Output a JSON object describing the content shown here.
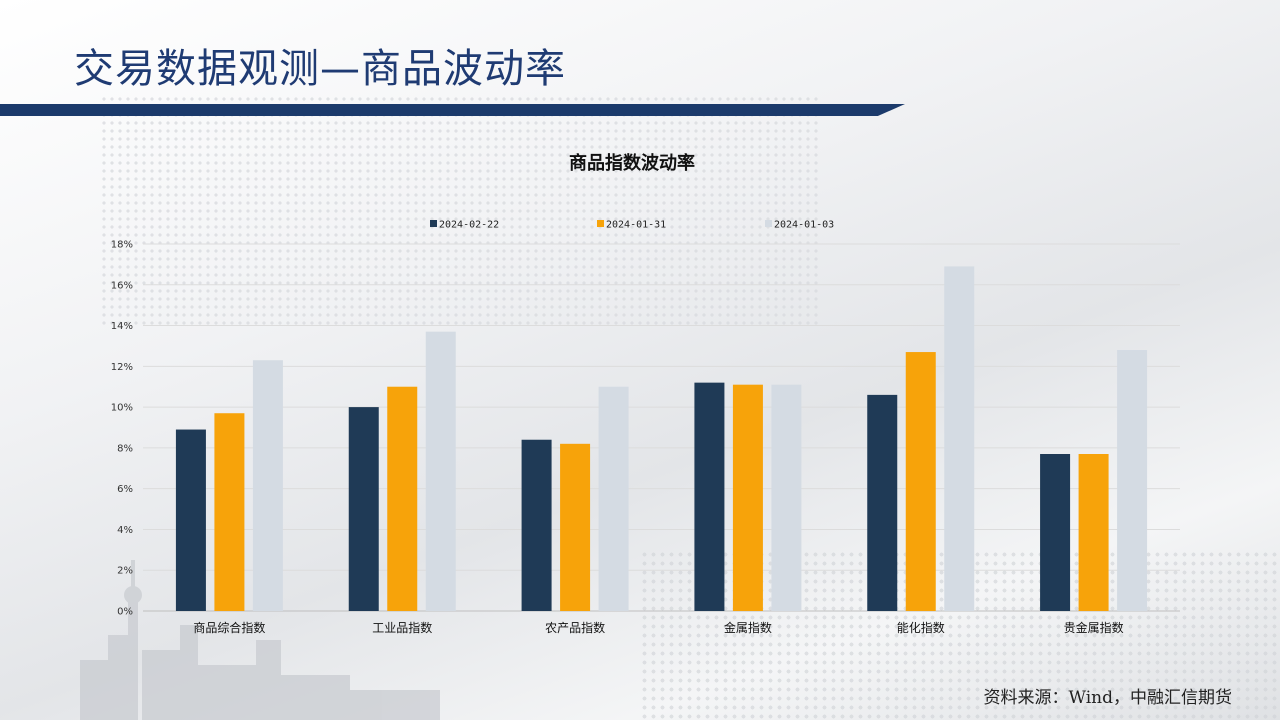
{
  "page": {
    "title": "交易数据观测—商品波动率",
    "source": "资料来源：Wind，中融汇信期货"
  },
  "colors": {
    "series_1": "#1f3a56",
    "series_2": "#f7a30a",
    "series_3": "#d4dbe3",
    "title_blue": "#1f3b73",
    "gridline": "#dcdcdc"
  },
  "chart_data": {
    "type": "bar",
    "title": "商品指数波动率",
    "categories": [
      "商品综合指数",
      "工业品指数",
      "农产品指数",
      "金属指数",
      "能化指数",
      "贵金属指数"
    ],
    "series": [
      {
        "name": "2024-02-22",
        "values": [
          8.9,
          10.0,
          8.4,
          11.2,
          10.6,
          7.7
        ]
      },
      {
        "name": "2024-01-31",
        "values": [
          9.7,
          11.0,
          8.2,
          11.1,
          12.7,
          7.7
        ]
      },
      {
        "name": "2024-01-03",
        "values": [
          12.3,
          13.7,
          11.0,
          11.1,
          16.9,
          12.8
        ]
      }
    ],
    "ylim": [
      0,
      18
    ],
    "yticks": [
      "0%",
      "2%",
      "4%",
      "6%",
      "8%",
      "10%",
      "12%",
      "14%",
      "16%",
      "18%"
    ],
    "legend_position": "top",
    "grid": true
  }
}
